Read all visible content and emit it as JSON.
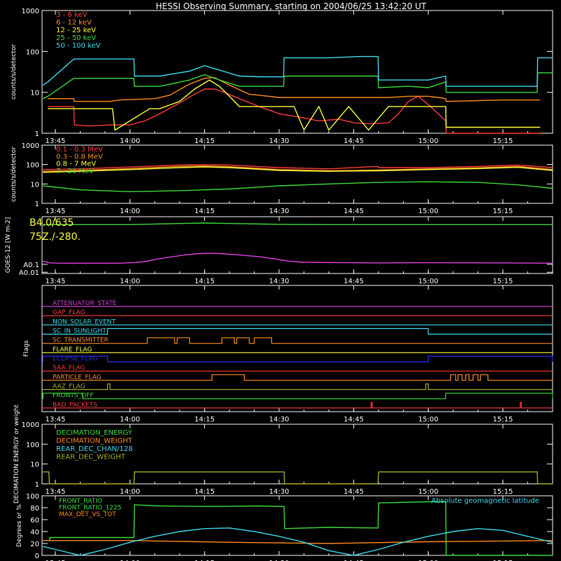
{
  "title": "HESSI Observing Summary, starting on 2004/06/25 13:42:20 UT",
  "time_axis": {
    "ticks": [
      {
        "label": "13:45",
        "minute": 825
      },
      {
        "label": "14:00",
        "minute": 840
      },
      {
        "label": "14:15",
        "minute": 855
      },
      {
        "label": "14:30",
        "minute": 870
      },
      {
        "label": "14:45",
        "minute": 885
      },
      {
        "label": "15:00",
        "minute": 900
      },
      {
        "label": "15:15",
        "minute": 915
      }
    ],
    "range_minutes": [
      822.33,
      925
    ]
  },
  "chart_data": [
    {
      "type": "line",
      "ylabel": "counts/s/detector",
      "log": true,
      "ylim": [
        1,
        1000
      ],
      "yticks": [
        "1",
        "10",
        "100",
        "1000"
      ],
      "ytick_values": [
        1,
        10,
        100,
        1000
      ],
      "series": [
        {
          "name": "3 - 6 keV",
          "color": "#ff3c3c",
          "x": [
            823.5,
            828.7,
            828.8,
            832,
            836,
            840,
            843,
            846,
            850,
            853,
            855,
            857,
            859,
            862,
            866,
            870,
            874,
            878,
            882,
            885,
            888,
            892,
            894,
            896,
            898,
            900,
            902,
            903.5,
            903.6,
            910,
            918,
            922.5
          ],
          "y": [
            4.5,
            4.5,
            1.6,
            1.5,
            1.6,
            1.6,
            2.0,
            3.0,
            5.5,
            9.0,
            12.0,
            12.0,
            10.0,
            7.0,
            4.5,
            3.0,
            2.5,
            2.0,
            2.2,
            1.8,
            1.7,
            1.8,
            3.0,
            6.0,
            8.0,
            5.0,
            3.0,
            2.0,
            1.0,
            1.0,
            1.0,
            1.0
          ]
        },
        {
          "name": "6 - 12 keV",
          "color": "#ff8c1e",
          "x": [
            823.5,
            828.7,
            828.8,
            836,
            838,
            845,
            848,
            852,
            855,
            857,
            860,
            864,
            870,
            878,
            885,
            892,
            896,
            900,
            902,
            903.5,
            903.6,
            915,
            922.5
          ],
          "y": [
            7.0,
            7.0,
            6.0,
            6.0,
            6.5,
            7.0,
            8.5,
            16.0,
            22.0,
            23.0,
            15.0,
            9.0,
            7.5,
            7.5,
            7.5,
            7.5,
            8.0,
            8.0,
            7.5,
            7.0,
            6.0,
            6.5,
            6.5
          ]
        },
        {
          "name": "12 - 25 keV",
          "color": "#ffff3c",
          "x": [
            823.5,
            828.7,
            828.8,
            836.5,
            837,
            844,
            846,
            850,
            853,
            856,
            858,
            860,
            862,
            866,
            870,
            873,
            875,
            878,
            880,
            884,
            888,
            892,
            896,
            900,
            903.5,
            903.6,
            915,
            922.5
          ],
          "y": [
            4.0,
            4.0,
            4.0,
            4.0,
            1.2,
            4.0,
            4.0,
            6.0,
            12.0,
            20.0,
            14.0,
            8.0,
            4.5,
            4.5,
            4.5,
            4.5,
            1.2,
            4.5,
            1.2,
            4.5,
            1.2,
            4.5,
            4.5,
            4.5,
            4.5,
            1.4,
            1.4,
            1.4
          ]
        },
        {
          "name": "25 - 50 keV",
          "color": "#3cdc3c",
          "x": [
            822.5,
            823.5,
            828.7,
            838,
            840.8,
            840.9,
            846,
            852,
            855,
            858,
            862,
            866,
            870.9,
            871,
            880,
            889.9,
            890,
            896,
            900,
            903.5,
            903.6,
            912,
            921.9,
            922,
            925
          ],
          "y": [
            7.0,
            8.0,
            22.0,
            22.0,
            22.0,
            14.0,
            14.0,
            20.0,
            27.0,
            20.0,
            14.0,
            14.0,
            14.0,
            25.0,
            25.0,
            25.0,
            13.0,
            14.0,
            13.0,
            18.0,
            10.0,
            10.0,
            10.0,
            30.0,
            30.0
          ]
        },
        {
          "name": "50 - 100 keV",
          "color": "#3cdcf0",
          "x": [
            822.5,
            823.5,
            828.7,
            838,
            840.8,
            840.9,
            846,
            852,
            855,
            858,
            862,
            866,
            870.9,
            871,
            880,
            886,
            889.9,
            890,
            900,
            903.5,
            903.6,
            912,
            921.9,
            922,
            925
          ],
          "y": [
            15.0,
            18.0,
            65.0,
            65.0,
            65.0,
            25.0,
            25.0,
            33.0,
            45.0,
            35.0,
            25.0,
            24.0,
            24.0,
            70.0,
            70.0,
            75.0,
            75.0,
            20.0,
            20.0,
            25.0,
            14.0,
            14.0,
            14.0,
            70.0,
            70.0
          ]
        }
      ]
    },
    {
      "type": "line",
      "ylabel": "counts/s/detector",
      "log": true,
      "ylim": [
        1,
        1000
      ],
      "yticks": [
        "1",
        "10",
        "100",
        "1000"
      ],
      "ytick_values": [
        1,
        10,
        100,
        1000
      ],
      "series": [
        {
          "name": "0.1 - 0.3 MeV",
          "color": "#ff3c3c",
          "x": [
            822.5,
            830,
            840,
            850,
            855,
            860,
            870,
            880,
            889.9,
            890,
            900,
            910,
            918,
            925
          ],
          "y": [
            55,
            60,
            75,
            95,
            100,
            95,
            70,
            60,
            80,
            70,
            70,
            80,
            95,
            70
          ]
        },
        {
          "name": "0.3 - 0.8 MeV",
          "color": "#ff8c1e",
          "x": [
            822.5,
            830,
            840,
            850,
            855,
            860,
            870,
            880,
            890,
            900,
            910,
            918,
            925
          ],
          "y": [
            45,
            50,
            62,
            80,
            85,
            78,
            55,
            48,
            52,
            60,
            68,
            80,
            55
          ]
        },
        {
          "name": "0.8 - 7 MeV",
          "color": "#ffff3c",
          "x": [
            822.5,
            830,
            840,
            850,
            855,
            860,
            870,
            880,
            890,
            900,
            910,
            918,
            925
          ],
          "y": [
            40,
            45,
            55,
            70,
            75,
            70,
            50,
            45,
            48,
            55,
            62,
            72,
            50
          ]
        },
        {
          "name": "7 - 20 MeV",
          "color": "#3cdc3c",
          "x": [
            822.5,
            830,
            840,
            850,
            855,
            860,
            870,
            880,
            890,
            900,
            910,
            918,
            925
          ],
          "y": [
            8,
            5,
            4,
            4.5,
            5,
            5.5,
            8,
            10,
            12,
            13,
            12,
            9,
            6
          ]
        }
      ]
    },
    {
      "type": "line",
      "ylabel": "GOES-12 [W m-2]",
      "log": true,
      "ylim": [
        0.007,
        100000
      ],
      "yticks": [
        "A0.01",
        "A0.1"
      ],
      "ytick_values": [
        0.01,
        0.1
      ],
      "annotations": [
        "B4.0/635",
        "75Z./-280."
      ],
      "series": [
        {
          "name": "GOES high",
          "color": "#3cdc3c",
          "x": [
            822.5,
            840,
            850,
            855,
            860,
            870,
            880,
            900,
            925
          ],
          "y": [
            10000,
            10000,
            14000,
            16000,
            14000,
            11000,
            10000,
            10000,
            10000
          ]
        },
        {
          "name": "GOES low",
          "color": "#e040e0",
          "x": [
            822.5,
            824,
            826,
            838,
            841,
            843,
            845,
            848,
            851,
            854,
            856,
            858,
            862,
            866,
            869,
            872,
            875,
            890,
            900,
            915,
            925
          ],
          "y": [
            0.25,
            0.15,
            0.14,
            0.14,
            0.17,
            0.22,
            0.4,
            0.8,
            1.5,
            2.3,
            2.5,
            2.3,
            1.5,
            0.9,
            0.5,
            0.25,
            0.18,
            0.15,
            0.16,
            0.15,
            0.14
          ]
        }
      ]
    },
    {
      "type": "line",
      "ylabel": "Flags",
      "flags": [
        {
          "name": "ATTENUATOR_STATE",
          "color": "#d23cd2",
          "high": []
        },
        {
          "name": "GAP_FLAG",
          "color": "#ff3c3c",
          "high": []
        },
        {
          "name": "NON_SOLAR_EVENT",
          "color": "#3cdcf0",
          "high": []
        },
        {
          "name": "SC_IN_SUNLIGHT",
          "color": "#3cdcf0",
          "high": [
            [
              835.5,
              900
            ]
          ]
        },
        {
          "name": "SC_TRANSMITTER",
          "color": "#ff8c1e",
          "high": [
            [
              843.5,
              849
            ],
            [
              849.5,
              852
            ],
            [
              858.5,
              861
            ],
            [
              861.5,
              864
            ],
            [
              865,
              868.5
            ]
          ]
        },
        {
          "name": "FLARE_FLAG",
          "color": "#ffff3c",
          "high": []
        },
        {
          "name": "ECLIPSE_FLAG",
          "color": "#2a2aff",
          "high": [
            [
              822.5,
              835.5
            ],
            [
              900,
              925
            ]
          ]
        },
        {
          "name": "SAA_FLAG",
          "color": "#ff3c3c",
          "high": []
        },
        {
          "name": "PARTICLE_FLAG",
          "color": "#ff8c1e",
          "high": [
            [
              856.5,
              863
            ],
            [
              904.5,
              905.5
            ],
            [
              906,
              906.8
            ],
            [
              907.5,
              908.2
            ],
            [
              909,
              910
            ],
            [
              910.5,
              912
            ]
          ]
        },
        {
          "name": "AAZ_FLAG",
          "color": "#aaaa28",
          "high": [
            [
              835.5,
              836
            ],
            [
              899.5,
              900
            ]
          ]
        },
        {
          "name": "FRONTS_OFF",
          "color": "#3cdc3c",
          "high": [
            [
              822.5,
              830.5
            ],
            [
              903.5,
              925
            ]
          ]
        },
        {
          "name": "BAD_PACKETS",
          "color": "#ff3c3c",
          "high": [
            [
              888.5,
              888.7
            ],
            [
              918.5,
              918.7
            ]
          ]
        }
      ]
    },
    {
      "type": "line",
      "ylabel": "DECIMATION ENERGY or weight",
      "log": true,
      "ylim": [
        1,
        1000
      ],
      "yticks": [
        "1",
        "10",
        "100",
        "1000"
      ],
      "ytick_values": [
        1,
        10,
        100,
        1000
      ],
      "series": [
        {
          "name": "DECIMATION_ENERGY",
          "color": "#3cdc3c",
          "x": [],
          "y": []
        },
        {
          "name": "DECIMATION_WEIGHT",
          "color": "#ff8c1e",
          "x": [],
          "y": []
        },
        {
          "name": "REAR_DEC_CHAN/128",
          "color": "#3cdcf0",
          "x": [],
          "y": []
        },
        {
          "name": "REAR_DEC_WEIGHT",
          "color": "#aaaa28",
          "x": [
            822.5,
            823.7,
            823.8,
            840.8,
            840.9,
            871,
            871.1,
            889.9,
            890,
            921.9,
            922,
            925
          ],
          "y": [
            4,
            4,
            1,
            1,
            4,
            4,
            1,
            1,
            4,
            4,
            1,
            1
          ]
        }
      ]
    },
    {
      "type": "line",
      "ylabel": "Degrees or %",
      "ylim": [
        0,
        100
      ],
      "yticks": [
        "0",
        "20",
        "40",
        "60",
        "80",
        "100"
      ],
      "ytick_values": [
        0,
        20,
        40,
        60,
        80,
        100
      ],
      "annotations": [
        "Absolute geomagnetic latitude"
      ],
      "series": [
        {
          "name": "FRONT_RATIO",
          "color": "#3cdc3c",
          "x": [
            822.5,
            823.8,
            823.9,
            840.8,
            840.9,
            846,
            856,
            866,
            871,
            871.1,
            880,
            889.9,
            890,
            900,
            903.5,
            903.6,
            925
          ],
          "y": [
            25,
            25,
            30,
            30,
            85,
            83,
            82,
            83,
            82,
            45,
            47,
            46,
            88,
            90,
            90,
            0,
            0
          ]
        },
        {
          "name": "FRONT_RATIO_1225",
          "color": "#3cdc3c",
          "x": [],
          "y": []
        },
        {
          "name": "MAX_DET_VS_TOT",
          "color": "#ff8c1e",
          "x": [
            822.5,
            840,
            860,
            880,
            900,
            925
          ],
          "y": [
            25,
            25,
            22,
            20,
            23,
            25
          ]
        },
        {
          "name": "Absolute geomagnetic latitude",
          "color": "#3cdcf0",
          "x": [
            822.5,
            825,
            830,
            835,
            840,
            845,
            850,
            855,
            860,
            865,
            870,
            875,
            880,
            885,
            890,
            895,
            900,
            905,
            910,
            915,
            920,
            925
          ],
          "y": [
            15,
            10,
            0,
            10,
            22,
            32,
            40,
            45,
            46,
            40,
            32,
            22,
            8,
            0,
            10,
            22,
            32,
            40,
            45,
            42,
            32,
            22
          ]
        }
      ]
    }
  ]
}
